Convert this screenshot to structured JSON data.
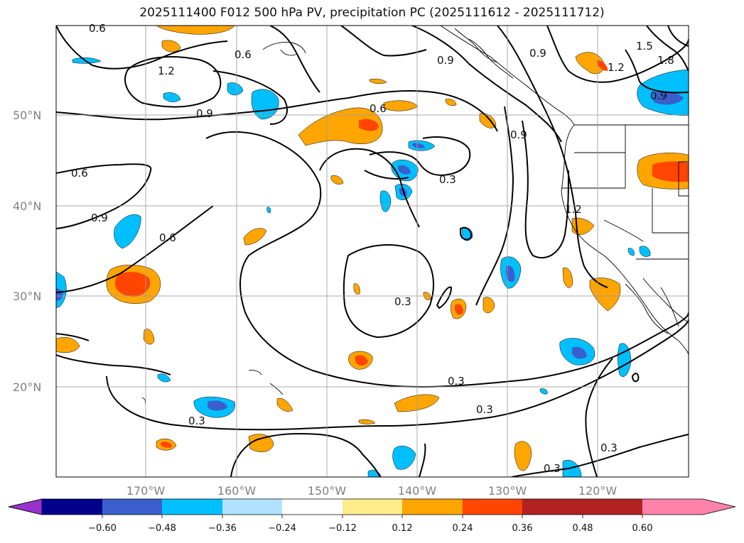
{
  "title": "2025111400 F012 500 hPa PV, precipitation PC (2025111612 - 2025111712)",
  "lat_labels": [
    "50°N",
    "40°N",
    "30°N",
    "20°N"
  ],
  "lon_labels": [
    "170°W",
    "160°W",
    "150°W",
    "140°W",
    "130°W",
    "120°W"
  ],
  "colorbar": {
    "ticks": [
      "−0.60",
      "−0.48",
      "−0.36",
      "−0.24",
      "−0.12",
      "0.12",
      "0.24",
      "0.36",
      "0.48",
      "0.60"
    ],
    "colors": [
      "#9932cc",
      "#00008b",
      "#3a5fcd",
      "#00bfff",
      "#b0e2ff",
      "#ffffff",
      "#ffec8b",
      "#ffa500",
      "#ff4500",
      "#b22222",
      "#ff82ab"
    ]
  },
  "contour_labels": [
    "0.6",
    "0.6",
    "0.6",
    "0.6",
    "0.6",
    "1.2",
    "1.2",
    "1.2",
    "1.5",
    "1.8",
    "0.9",
    "0.9",
    "0.9",
    "0.9",
    "0.9",
    "0.9",
    "0.3",
    "0.3",
    "0.3",
    "0.3",
    "0.3",
    "0.3",
    "0.3"
  ]
}
